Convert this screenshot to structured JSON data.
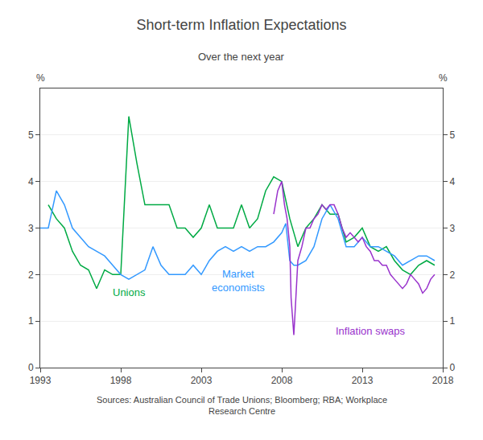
{
  "chart_data": {
    "type": "line",
    "title": "Short-term Inflation Expectations",
    "subtitle": "Over the next year",
    "ylabel": "%",
    "y2label": "%",
    "source": "Sources: Australian Council of Trade Unions; Bloomberg; RBA; Workplace\nResearch Centre",
    "xlim": [
      1993,
      2018
    ],
    "xticks": [
      1993,
      1998,
      2003,
      2008,
      2013,
      2018
    ],
    "ylim": [
      0,
      6
    ],
    "yticks": [
      0,
      1,
      2,
      3,
      4,
      5
    ],
    "y2lim": [
      0,
      6
    ],
    "y2ticks": [
      0,
      1,
      2,
      3,
      4,
      5
    ],
    "grid": true,
    "series": [
      {
        "color": "#00aa44",
        "x": [
          1993.5,
          1994.0,
          1994.5,
          1995.0,
          1995.5,
          1996.0,
          1996.5,
          1997.0,
          1997.5,
          1998.0,
          1998.5,
          1999.0,
          1999.5,
          2000.0,
          2000.5,
          2001.0,
          2001.5,
          2002.0,
          2002.5,
          2003.0,
          2003.5,
          2004.0,
          2004.5,
          2005.0,
          2005.5,
          2006.0,
          2006.5,
          2007.0,
          2007.5,
          2008.0,
          2008.5,
          2009.0,
          2009.5,
          2010.0,
          2010.5,
          2011.0,
          2011.5,
          2012.0,
          2012.5,
          2013.0,
          2013.5,
          2014.0,
          2014.5,
          2015.0,
          2015.5,
          2016.0,
          2016.5,
          2017.0,
          2017.5
        ],
        "values": [
          3.5,
          3.2,
          3.0,
          2.5,
          2.2,
          2.1,
          1.7,
          2.1,
          2.0,
          2.0,
          5.4,
          4.4,
          3.5,
          3.5,
          3.5,
          3.5,
          3.0,
          3.0,
          2.8,
          3.0,
          3.5,
          3.0,
          3.0,
          3.0,
          3.5,
          3.0,
          3.2,
          3.8,
          4.1,
          4.0,
          3.2,
          2.6,
          3.0,
          3.2,
          3.5,
          3.3,
          3.3,
          2.7,
          2.8,
          3.0,
          2.6,
          2.5,
          2.6,
          2.3,
          2.1,
          2.0,
          2.2,
          2.3,
          2.2
        ]
      },
      {
        "color": "#3399ff",
        "x": [
          1993.0,
          1993.5,
          1994.0,
          1994.5,
          1995.0,
          1995.5,
          1996.0,
          1996.5,
          1997.0,
          1997.5,
          1998.0,
          1998.5,
          1999.0,
          1999.5,
          2000.0,
          2000.5,
          2001.0,
          2001.5,
          2002.0,
          2002.5,
          2003.0,
          2003.5,
          2004.0,
          2004.5,
          2005.0,
          2005.5,
          2006.0,
          2006.5,
          2007.0,
          2007.5,
          2008.0,
          2008.25,
          2008.5,
          2008.75,
          2009.0,
          2009.5,
          2010.0,
          2010.5,
          2011.0,
          2011.5,
          2012.0,
          2012.5,
          2013.0,
          2013.5,
          2014.0,
          2014.5,
          2015.0,
          2015.5,
          2016.0,
          2016.5,
          2017.0,
          2017.5
        ],
        "values": [
          3.0,
          3.0,
          3.8,
          3.5,
          3.0,
          2.8,
          2.6,
          2.5,
          2.4,
          2.2,
          2.0,
          1.9,
          2.0,
          2.1,
          2.6,
          2.2,
          2.0,
          2.0,
          2.0,
          2.2,
          2.0,
          2.3,
          2.5,
          2.6,
          2.5,
          2.6,
          2.5,
          2.6,
          2.6,
          2.7,
          2.9,
          3.1,
          2.3,
          2.2,
          2.2,
          2.3,
          2.6,
          3.2,
          3.5,
          3.2,
          2.6,
          2.6,
          2.8,
          2.6,
          2.6,
          2.5,
          2.4,
          2.2,
          2.3,
          2.4,
          2.4,
          2.3
        ]
      },
      {
        "color": "#9933cc",
        "x": [
          2007.5,
          2007.75,
          2008.0,
          2008.17,
          2008.33,
          2008.5,
          2008.58,
          2008.67,
          2008.75,
          2008.83,
          2009.0,
          2009.25,
          2009.5,
          2009.75,
          2010.0,
          2010.25,
          2010.5,
          2010.75,
          2011.0,
          2011.25,
          2011.5,
          2011.75,
          2012.0,
          2012.25,
          2012.5,
          2012.75,
          2013.0,
          2013.25,
          2013.5,
          2013.75,
          2014.0,
          2014.25,
          2014.5,
          2014.75,
          2015.0,
          2015.25,
          2015.5,
          2015.75,
          2016.0,
          2016.25,
          2016.5,
          2016.75,
          2017.0,
          2017.25,
          2017.5
        ],
        "values": [
          3.3,
          3.8,
          4.0,
          3.5,
          3.2,
          2.6,
          1.5,
          1.0,
          0.7,
          1.2,
          2.3,
          2.6,
          3.0,
          3.0,
          3.2,
          3.3,
          3.5,
          3.4,
          3.5,
          3.5,
          3.3,
          3.0,
          2.8,
          2.9,
          2.8,
          2.7,
          2.8,
          2.6,
          2.5,
          2.3,
          2.3,
          2.2,
          2.2,
          2.0,
          1.9,
          1.8,
          1.7,
          1.8,
          2.0,
          1.9,
          1.8,
          1.6,
          1.7,
          1.9,
          2.0
        ]
      }
    ],
    "annotations": [
      {
        "text": "Unions",
        "x": 1998.5,
        "y": 1.45,
        "color": "#00aa44"
      },
      {
        "text": "Market\neconomists",
        "x": 2005.3,
        "y": 1.55,
        "color": "#3399ff"
      },
      {
        "text": "Inflation swaps",
        "x": 2013.5,
        "y": 0.62,
        "color": "#9933cc"
      }
    ]
  }
}
